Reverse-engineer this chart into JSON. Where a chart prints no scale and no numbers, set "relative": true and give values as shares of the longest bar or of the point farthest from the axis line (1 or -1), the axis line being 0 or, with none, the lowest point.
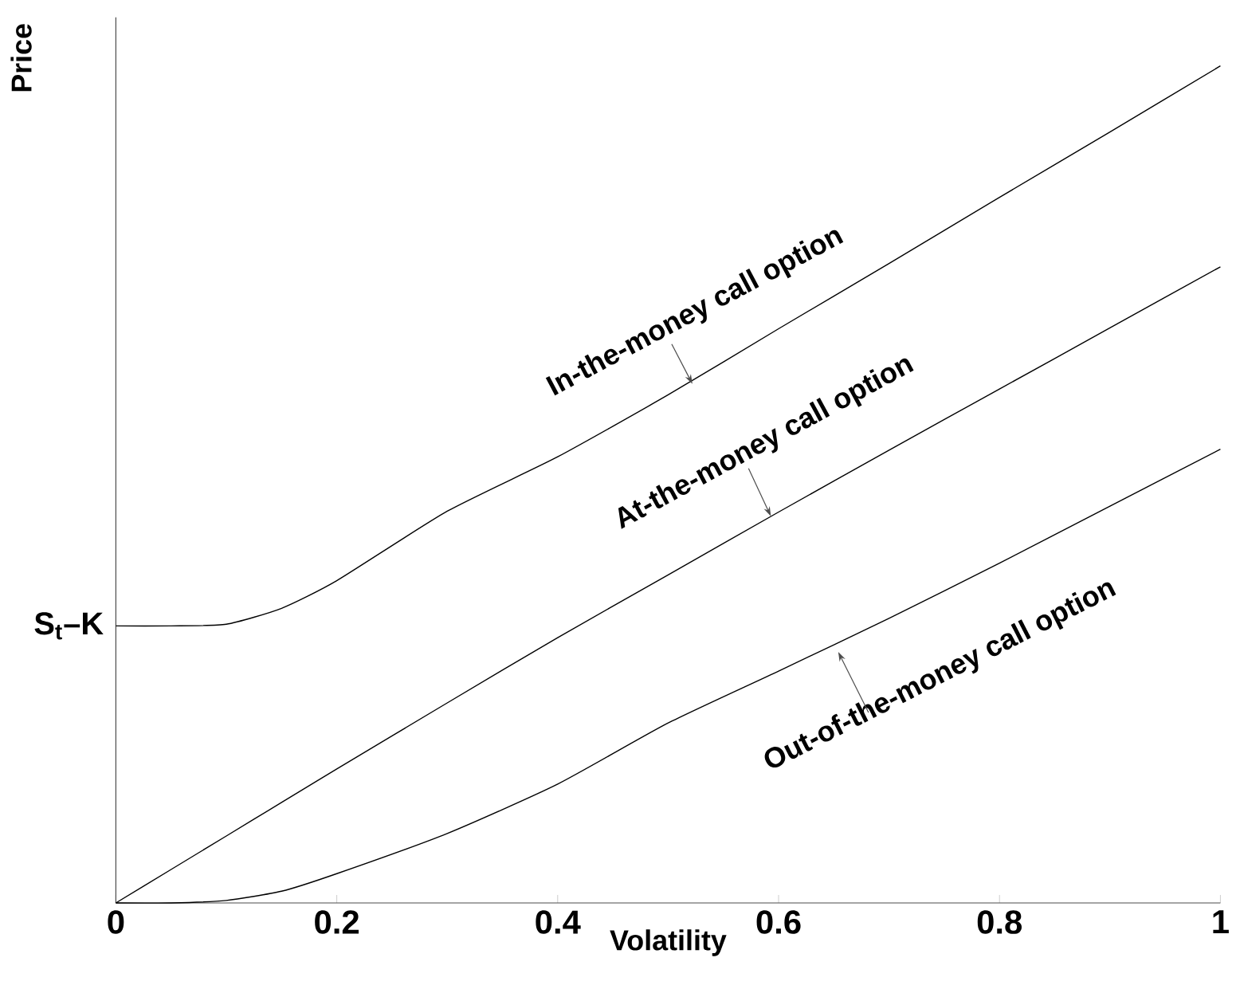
{
  "chart_data": {
    "type": "line",
    "relative": true,
    "xlabel": "Volatility",
    "ylabel": "Price",
    "xlim": [
      0,
      1
    ],
    "xticks": [
      0,
      0.2,
      0.4,
      0.6,
      0.8,
      1
    ],
    "x": [
      0,
      0.05,
      0.1,
      0.15,
      0.2,
      0.3,
      0.4,
      0.5,
      0.6,
      0.7,
      0.8,
      0.9,
      1
    ],
    "series": [
      {
        "color": "#000000",
        "values": [
          0.331,
          0.331,
          0.333,
          0.352,
          0.385,
          0.468,
          0.533,
          0.607,
          0.686,
          0.764,
          0.843,
          0.921,
          1
        ]
      },
      {
        "color": "#000000",
        "values": [
          0,
          0.04,
          0.08,
          0.12,
          0.16,
          0.239,
          0.317,
          0.392,
          0.467,
          0.541,
          0.614,
          0.687,
          0.76
        ]
      },
      {
        "color": "#000000",
        "values": [
          0,
          0,
          0.003,
          0.014,
          0.035,
          0.083,
          0.142,
          0.215,
          0.277,
          0.34,
          0.406,
          0.474,
          0.542
        ]
      }
    ],
    "annotations": [
      {
        "text": "S$_{t}$–K",
        "x": 0,
        "y": 0.331
      },
      {
        "text": "In-the-money call option",
        "x": 0.522,
        "y": 0.62
      },
      {
        "text": "At-the-money call option",
        "x": 0.593,
        "y": 0.462
      },
      {
        "text": "Out-of-the-money call option",
        "x": 0.654,
        "y": 0.3
      }
    ]
  }
}
